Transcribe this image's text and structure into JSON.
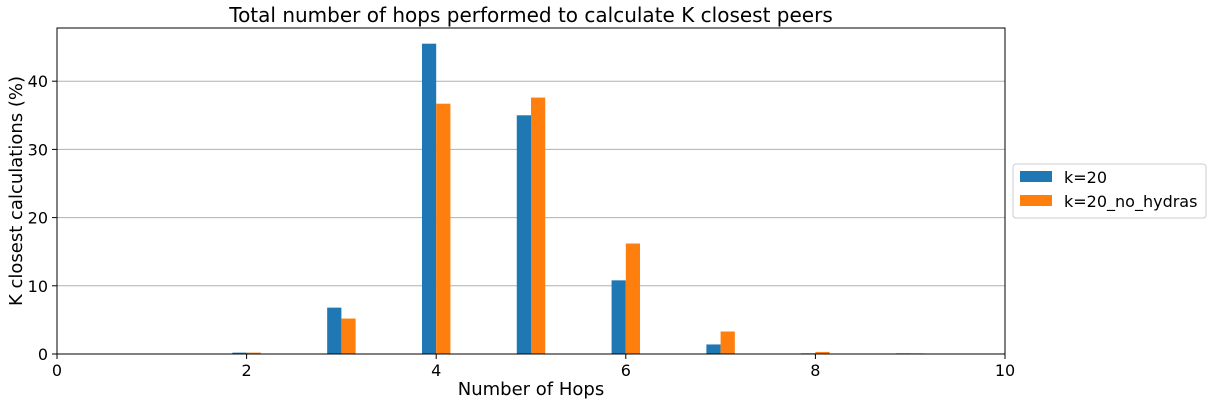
{
  "chart_data": {
    "type": "bar",
    "title": "Total number of hops performed to calculate K closest peers",
    "xlabel": "Number of Hops",
    "ylabel": "K closest calculations (%)",
    "x": [
      2,
      3,
      4,
      5,
      6,
      7,
      8,
      9
    ],
    "series": [
      {
        "name": "k=20",
        "color": "#1f77b4",
        "values": [
          0.2,
          6.8,
          45.5,
          35.0,
          10.8,
          1.4,
          0.1,
          0.1
        ]
      },
      {
        "name": "k=20_no_hydras",
        "color": "#ff7f0e",
        "values": [
          0.2,
          5.2,
          36.7,
          37.6,
          16.2,
          3.3,
          0.3,
          0.1
        ]
      }
    ],
    "xlim": [
      0,
      10
    ],
    "ylim": [
      0,
      47.8
    ],
    "xticks": [
      "0",
      "2",
      "4",
      "6",
      "8",
      "10"
    ],
    "yticks": [
      "0",
      "10",
      "20",
      "30",
      "40"
    ],
    "grid": "horizontal",
    "legend_position": "right, outside plot"
  }
}
